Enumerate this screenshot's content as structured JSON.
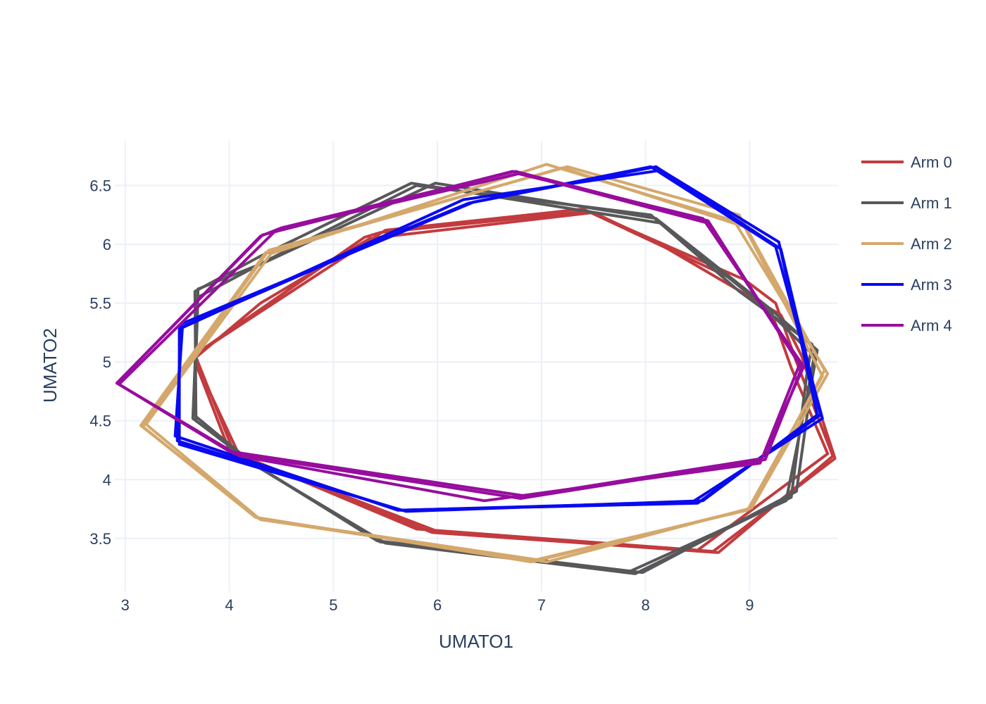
{
  "chart_data": {
    "type": "line",
    "title": "",
    "xlabel": "UMATO1",
    "ylabel": "UMATO2",
    "xlim": [
      2.9,
      9.85
    ],
    "ylim": [
      3.05,
      6.88
    ],
    "x_ticks": [
      3,
      4,
      5,
      6,
      7,
      8,
      9
    ],
    "y_ticks": [
      3.5,
      4,
      4.5,
      5,
      5.5,
      6,
      6.5
    ],
    "y_tick_labels": [
      "3.5",
      "4",
      "4.5",
      "5",
      "5.5",
      "6",
      "6.5"
    ],
    "grid": true,
    "legend_position": "top-right",
    "series": [
      {
        "name": "Arm 0",
        "color": "#c23b3e",
        "closed": true,
        "traces": [
          [
            [
              3.65,
              5.05
            ],
            [
              4.1,
              4.2
            ],
            [
              5.95,
              3.55
            ],
            [
              8.7,
              3.38
            ],
            [
              9.8,
              4.2
            ],
            [
              9.45,
              5.0
            ],
            [
              9.25,
              5.5
            ],
            [
              8.95,
              5.7
            ],
            [
              7.45,
              6.28
            ],
            [
              5.45,
              6.1
            ],
            [
              5.3,
              6.06
            ]
          ],
          [
            [
              3.65,
              5.05
            ],
            [
              4.0,
              4.25
            ],
            [
              5.8,
              3.58
            ],
            [
              8.5,
              3.4
            ],
            [
              9.75,
              4.22
            ],
            [
              9.4,
              4.95
            ],
            [
              9.2,
              5.45
            ],
            [
              8.8,
              5.72
            ],
            [
              7.4,
              6.3
            ],
            [
              5.5,
              6.12
            ]
          ],
          [
            [
              3.68,
              5.04
            ],
            [
              4.05,
              4.22
            ],
            [
              6.0,
              3.56
            ],
            [
              8.65,
              3.39
            ],
            [
              9.82,
              4.18
            ],
            [
              9.5,
              5.05
            ],
            [
              9.3,
              5.4
            ],
            [
              8.1,
              6.02
            ],
            [
              7.5,
              6.27
            ],
            [
              5.35,
              6.05
            ],
            [
              4.3,
              5.5
            ]
          ]
        ]
      },
      {
        "name": "Arm 1",
        "color": "#58585a",
        "closed": true,
        "traces": [
          [
            [
              3.65,
              4.52
            ],
            [
              4.3,
              4.1
            ],
            [
              5.42,
              3.48
            ],
            [
              7.97,
              3.21
            ],
            [
              9.45,
              3.9
            ],
            [
              9.6,
              4.85
            ],
            [
              9.65,
              5.1
            ],
            [
              9.2,
              5.45
            ],
            [
              8.1,
              6.22
            ],
            [
              5.98,
              6.52
            ],
            [
              4.35,
              5.85
            ],
            [
              3.7,
              5.62
            ]
          ],
          [
            [
              3.68,
              4.5
            ],
            [
              4.2,
              4.15
            ],
            [
              5.45,
              3.47
            ],
            [
              7.85,
              3.22
            ],
            [
              9.35,
              3.82
            ],
            [
              9.55,
              4.7
            ],
            [
              9.62,
              5.05
            ],
            [
              9.1,
              5.5
            ],
            [
              8.15,
              6.18
            ],
            [
              5.75,
              6.52
            ],
            [
              4.3,
              5.9
            ],
            [
              3.67,
              5.6
            ]
          ],
          [
            [
              3.66,
              4.55
            ],
            [
              4.25,
              4.12
            ],
            [
              5.5,
              3.46
            ],
            [
              7.9,
              3.2
            ],
            [
              9.4,
              3.85
            ],
            [
              9.55,
              4.9
            ],
            [
              9.6,
              5.15
            ],
            [
              8.9,
              5.6
            ],
            [
              8.05,
              6.25
            ],
            [
              5.8,
              6.5
            ],
            [
              4.4,
              5.88
            ],
            [
              3.7,
              5.55
            ]
          ]
        ]
      },
      {
        "name": "Arm 2",
        "color": "#d4a86c",
        "closed": true,
        "traces": [
          [
            [
              3.17,
              4.45
            ],
            [
              4.25,
              3.68
            ],
            [
              6.9,
              3.3
            ],
            [
              9.0,
              3.75
            ],
            [
              9.72,
              4.93
            ],
            [
              8.9,
              6.25
            ],
            [
              7.25,
              6.66
            ],
            [
              4.38,
              5.95
            ]
          ],
          [
            [
              3.2,
              4.47
            ],
            [
              4.3,
              3.66
            ],
            [
              7.05,
              3.3
            ],
            [
              9.02,
              3.76
            ],
            [
              9.75,
              4.9
            ],
            [
              8.85,
              6.2
            ],
            [
              7.05,
              6.68
            ],
            [
              4.4,
              5.92
            ]
          ],
          [
            [
              3.15,
              4.46
            ],
            [
              4.28,
              3.67
            ],
            [
              6.95,
              3.32
            ],
            [
              8.98,
              3.74
            ],
            [
              9.7,
              4.88
            ],
            [
              8.95,
              6.15
            ],
            [
              7.2,
              6.65
            ],
            [
              4.35,
              5.93
            ]
          ]
        ]
      },
      {
        "name": "Arm 3",
        "color": "#0a0af0",
        "closed": true,
        "traces": [
          [
            [
              3.48,
              4.37
            ],
            [
              5.62,
              3.74
            ],
            [
              8.5,
              3.8
            ],
            [
              9.68,
              4.55
            ],
            [
              9.3,
              5.96
            ],
            [
              8.1,
              6.66
            ],
            [
              6.3,
              6.35
            ],
            [
              5.7,
              6.13
            ],
            [
              3.55,
              5.3
            ]
          ],
          [
            [
              3.52,
              4.3
            ],
            [
              5.7,
              3.73
            ],
            [
              8.55,
              3.82
            ],
            [
              9.65,
              4.55
            ],
            [
              9.28,
              6.02
            ],
            [
              8.15,
              6.63
            ],
            [
              6.25,
              6.38
            ],
            [
              3.52,
              5.28
            ]
          ],
          [
            [
              3.5,
              4.33
            ],
            [
              5.65,
              3.74
            ],
            [
              8.45,
              3.81
            ],
            [
              9.7,
              4.52
            ],
            [
              9.25,
              5.98
            ],
            [
              8.05,
              6.66
            ],
            [
              6.35,
              6.36
            ],
            [
              3.53,
              5.32
            ]
          ]
        ]
      },
      {
        "name": "Arm 4",
        "color": "#970d9e",
        "closed": true,
        "traces": [
          [
            [
              2.92,
              4.82
            ],
            [
              4.05,
              4.22
            ],
            [
              6.8,
              3.84
            ],
            [
              9.15,
              4.17
            ],
            [
              9.5,
              4.95
            ],
            [
              8.6,
              6.2
            ],
            [
              6.75,
              6.62
            ],
            [
              4.5,
              6.14
            ],
            [
              4.3,
              6.07
            ]
          ],
          [
            [
              2.92,
              4.82
            ],
            [
              4.1,
              4.2
            ],
            [
              6.45,
              3.82
            ],
            [
              9.1,
              4.14
            ],
            [
              9.48,
              4.98
            ],
            [
              8.6,
              6.18
            ],
            [
              6.72,
              6.62
            ],
            [
              4.32,
              6.08
            ]
          ],
          [
            [
              2.94,
              4.81
            ],
            [
              4.0,
              4.24
            ],
            [
              6.85,
              3.86
            ],
            [
              9.12,
              4.18
            ],
            [
              9.52,
              4.96
            ],
            [
              8.55,
              6.22
            ],
            [
              6.78,
              6.6
            ],
            [
              4.45,
              6.12
            ]
          ]
        ]
      }
    ]
  }
}
